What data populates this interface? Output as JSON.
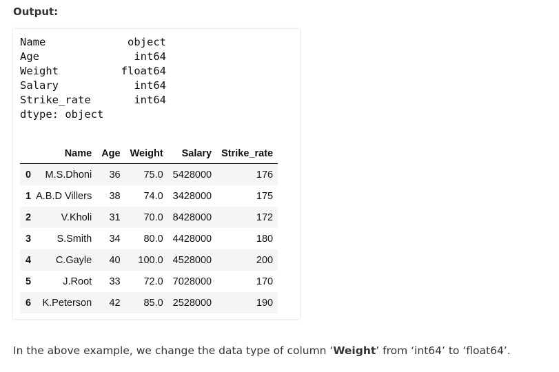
{
  "output_label": "Output:",
  "dtypes": {
    "lines": [
      [
        "Name",
        "object"
      ],
      [
        "Age",
        "int64"
      ],
      [
        "Weight",
        "float64"
      ],
      [
        "Salary",
        "int64"
      ],
      [
        "Strike_rate",
        "int64"
      ]
    ],
    "footer": "dtype: object"
  },
  "table": {
    "headers": [
      "Name",
      "Age",
      "Weight",
      "Salary",
      "Strike_rate"
    ],
    "rows": [
      [
        "0",
        "M.S.Dhoni",
        "36",
        "75.0",
        "5428000",
        "176"
      ],
      [
        "1",
        "A.B.D Villers",
        "38",
        "74.0",
        "3428000",
        "175"
      ],
      [
        "2",
        "V.Kholi",
        "31",
        "70.0",
        "8428000",
        "172"
      ],
      [
        "3",
        "S.Smith",
        "34",
        "80.0",
        "4428000",
        "180"
      ],
      [
        "4",
        "C.Gayle",
        "40",
        "100.0",
        "4528000",
        "200"
      ],
      [
        "5",
        "J.Root",
        "33",
        "72.0",
        "7028000",
        "170"
      ],
      [
        "6",
        "K.Peterson",
        "42",
        "85.0",
        "2528000",
        "190"
      ]
    ]
  },
  "paragraph": {
    "before": "In the above example, we change the data type of column ‘",
    "bold": "Weight",
    "after": "’ from ‘int64’ to ‘float64’."
  }
}
